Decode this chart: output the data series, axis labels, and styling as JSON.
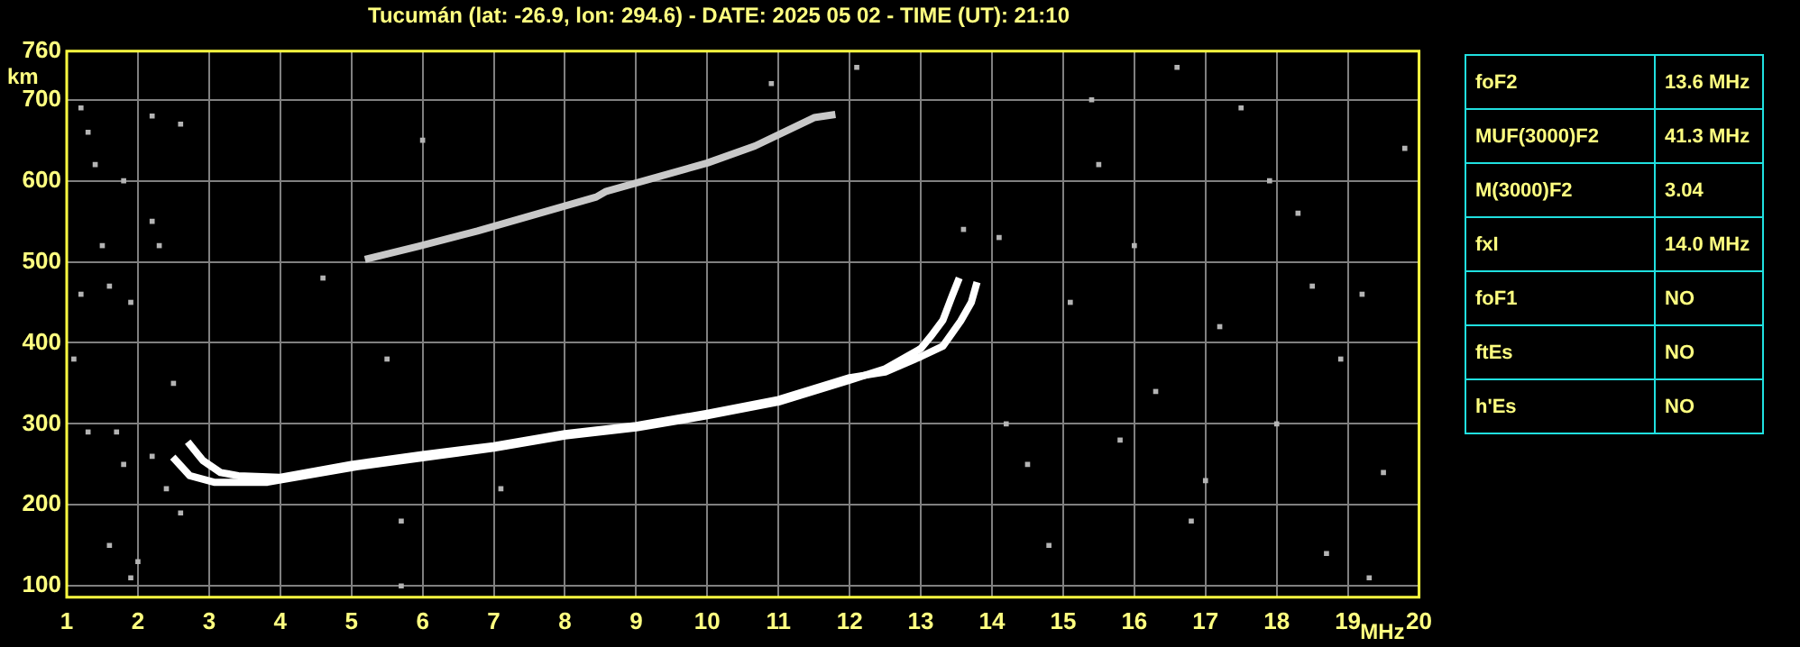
{
  "chart_data": [
    {
      "type": "scatter",
      "title": "Tucumán (lat: -26.9, lon: 294.6) - DATE: 2025 05 02 - TIME (UT): 21:10",
      "xlabel": "MHz",
      "ylabel": "km",
      "xlim": [
        1,
        20
      ],
      "xticks": [
        1,
        2,
        3,
        4,
        5,
        6,
        7,
        8,
        9,
        10,
        11,
        12,
        13,
        14,
        15,
        16,
        17,
        18,
        19,
        20
      ],
      "ylim": [
        86,
        760
      ],
      "yticks": [
        100,
        200,
        300,
        400,
        500,
        600,
        700,
        760
      ],
      "grid": true,
      "legend": false,
      "series": [
        {
          "type": "line",
          "marker": "none",
          "color": "#ffffff",
          "x": [
            2.49,
            2.73,
            3.07,
            3.82,
            5.07,
            6.07,
            7,
            8,
            9,
            10,
            11,
            12,
            12.5,
            13,
            13.14,
            13.31,
            13.44,
            13.54
          ],
          "values": [
            259,
            236,
            228,
            228,
            247,
            259,
            270,
            285,
            295,
            310,
            327,
            354,
            368,
            393,
            408,
            428,
            458,
            480
          ]
        },
        {
          "type": "line",
          "marker": "none",
          "color": "#ffffff",
          "x": [
            2.7,
            2.91,
            3.16,
            3.41,
            4,
            5,
            6,
            7,
            8,
            9,
            10,
            11,
            12,
            12.5,
            13,
            13.31,
            13.56,
            13.71,
            13.79
          ],
          "values": [
            278,
            255,
            240,
            236,
            234,
            250,
            262,
            273,
            288,
            298,
            313,
            330,
            357,
            364,
            383,
            396,
            427,
            450,
            475
          ]
        },
        {
          "type": "line",
          "marker": "none",
          "color": "#c8c8c8",
          "x": [
            5.19,
            5.94,
            6.77,
            8.44,
            8.58,
            10,
            10.67,
            11.5,
            11.8
          ],
          "values": [
            503,
            519,
            538,
            580,
            587,
            622,
            643,
            678,
            682
          ]
        },
        {
          "type": "scatter",
          "marker": "square",
          "color": "#b4b4b4",
          "x": [
            1.2,
            1.3,
            1.4,
            1.5,
            1.2,
            1.6,
            1.9,
            1.8,
            2.2,
            2.2,
            2.3,
            1.3,
            1.7,
            1.8,
            2.2,
            2.4,
            2.0,
            1.9,
            1.6,
            2.6,
            2.5,
            1.1,
            2.6,
            5.7,
            7.1,
            5.5,
            4.6,
            6.0,
            5.7,
            14.2,
            14.5,
            15.1,
            15.5,
            16,
            16.3,
            16.8,
            17.2,
            17.5,
            18,
            18.3,
            18.7,
            19.2,
            19.5,
            19.8,
            14.8,
            15.4,
            16.6,
            17.9,
            18.9,
            19.3,
            14.1,
            15.8,
            17,
            18.5,
            13.6,
            12.1,
            10.9
          ],
          "values": [
            690,
            660,
            620,
            520,
            460,
            470,
            450,
            600,
            680,
            550,
            520,
            290,
            290,
            250,
            260,
            220,
            130,
            110,
            150,
            670,
            350,
            380,
            190,
            180,
            220,
            380,
            480,
            650,
            100,
            300,
            250,
            450,
            620,
            520,
            340,
            180,
            420,
            690,
            300,
            560,
            140,
            460,
            240,
            640,
            150,
            700,
            740,
            600,
            380,
            110,
            530,
            280,
            230,
            470,
            540,
            740,
            720
          ]
        }
      ]
    },
    {
      "type": "other",
      "annotations": [
        "foF2",
        "13.6 MHz",
        "MUF(3000)F2",
        "41.3 MHz",
        "M(3000)F2",
        "3.04",
        "fxI",
        "14.0 MHz",
        "foF1",
        "NO",
        "ftEs",
        "NO",
        "h'Es",
        "NO"
      ]
    }
  ]
}
